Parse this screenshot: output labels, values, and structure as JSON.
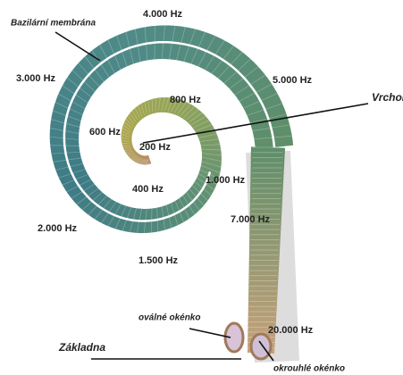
{
  "labels": {
    "membrane": "Bazilární membrána",
    "apex": "Vrchol",
    "base": "Základna",
    "oval_window": "oválné okénko",
    "round_window": "okrouhlé okénko"
  },
  "frequencies": [
    "4.000 Hz",
    "3.000 Hz",
    "5.000 Hz",
    "800 Hz",
    "600 Hz",
    "200 Hz",
    "1.000 Hz",
    "400 Hz",
    "7.000 Hz",
    "2.000 Hz",
    "1.500 Hz",
    "20.000 Hz"
  ]
}
